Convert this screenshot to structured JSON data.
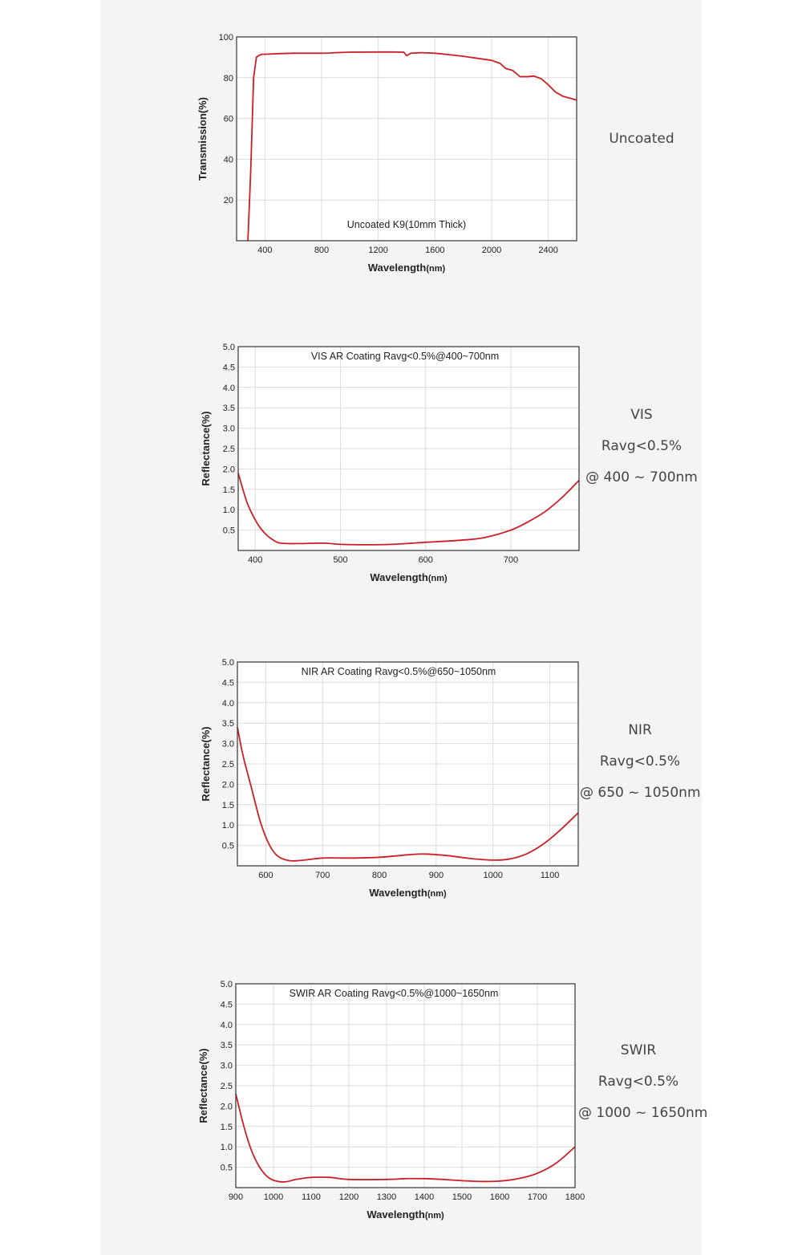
{
  "colors": {
    "curve": "#cc1f26",
    "grid": "#dcdcdc",
    "frame": "#333333",
    "background": "#f4f4f4"
  },
  "chart_data": [
    {
      "id": "uncoated",
      "type": "line",
      "title": "Uncoated K9(10mm Thick)",
      "xlabel": "Wavelength",
      "xunit": "(nm)",
      "ylabel": "Transmission(%)",
      "xlim": [
        200,
        2600
      ],
      "ylim": [
        0,
        100
      ],
      "xticks": [
        400,
        800,
        1200,
        1600,
        2000,
        2400
      ],
      "yticks": [
        20,
        40,
        60,
        80,
        100
      ],
      "ytick_labels": [
        "20",
        "40",
        "60",
        "80",
        "100"
      ],
      "grid": true,
      "side_labels": [
        "Uncoated"
      ],
      "series": [
        {
          "x": [
            280,
            300,
            320,
            340,
            360,
            380,
            400,
            500,
            600,
            700,
            800,
            850,
            900,
            1000,
            1200,
            1300,
            1380,
            1400,
            1430,
            1500,
            1600,
            1700,
            1800,
            1900,
            2000,
            2060,
            2100,
            2150,
            2200,
            2250,
            2300,
            2350,
            2400,
            2450,
            2500,
            2550,
            2600
          ],
          "y": [
            0,
            35,
            80,
            90,
            91,
            91.5,
            91.5,
            91.8,
            92,
            92,
            92,
            92.1,
            92.3,
            92.5,
            92.6,
            92.6,
            92.5,
            90.8,
            92,
            92.3,
            92,
            91.3,
            90.5,
            89.5,
            88.5,
            87,
            84.5,
            83.5,
            80.5,
            80.5,
            80.8,
            79.5,
            76.5,
            73,
            71,
            70,
            69
          ]
        }
      ]
    },
    {
      "id": "vis",
      "type": "line",
      "title": "VIS AR Coating Ravg<0.5%@400~700nm",
      "xlabel": "Wavelength",
      "xunit": "(nm)",
      "ylabel": "Reflectance(%)",
      "xlim": [
        380,
        780
      ],
      "ylim": [
        0,
        5
      ],
      "xticks": [
        400,
        500,
        600,
        700
      ],
      "yticks": [
        0.5,
        1,
        1.5,
        2,
        2.5,
        3,
        3.5,
        4,
        4.5,
        5
      ],
      "ytick_labels": [
        "0.5",
        "1.0",
        "1.5",
        "2.0",
        "2.5",
        "3.0",
        "3.5",
        "4.0",
        "4.5",
        "5.0"
      ],
      "grid": true,
      "side_labels": [
        "VIS",
        "Ravg<0.5%",
        "@ 400 ~ 700nm"
      ],
      "series": [
        {
          "x": [
            380,
            390,
            400,
            410,
            420,
            430,
            450,
            480,
            500,
            530,
            560,
            600,
            640,
            670,
            700,
            720,
            740,
            760,
            780
          ],
          "y": [
            1.9,
            1.2,
            0.75,
            0.45,
            0.27,
            0.18,
            0.17,
            0.18,
            0.15,
            0.14,
            0.15,
            0.2,
            0.25,
            0.32,
            0.5,
            0.7,
            0.95,
            1.3,
            1.72
          ]
        }
      ]
    },
    {
      "id": "nir",
      "type": "line",
      "title": "NIR AR Coating Ravg<0.5%@650~1050nm",
      "xlabel": "Wavelength",
      "xunit": "(nm)",
      "ylabel": "Reflectance(%)",
      "xlim": [
        550,
        1150
      ],
      "ylim": [
        0,
        5
      ],
      "xticks": [
        600,
        700,
        800,
        900,
        1000,
        1100
      ],
      "yticks": [
        0.5,
        1,
        1.5,
        2,
        2.5,
        3,
        3.5,
        4,
        4.5,
        5
      ],
      "ytick_labels": [
        "0.5",
        "1.0",
        "1.5",
        "2.0",
        "2.5",
        "3.0",
        "3.5",
        "4.0",
        "4.5",
        "5.0"
      ],
      "grid": true,
      "side_labels": [
        "NIR",
        "Ravg<0.5%",
        "@ 650 ~ 1050nm"
      ],
      "series": [
        {
          "x": [
            550,
            560,
            575,
            590,
            605,
            620,
            640,
            660,
            700,
            750,
            800,
            850,
            880,
            920,
            960,
            1000,
            1030,
            1060,
            1090,
            1120,
            1150
          ],
          "y": [
            3.4,
            2.7,
            1.9,
            1.1,
            0.55,
            0.25,
            0.13,
            0.13,
            0.19,
            0.19,
            0.21,
            0.27,
            0.29,
            0.25,
            0.18,
            0.14,
            0.17,
            0.3,
            0.55,
            0.9,
            1.3
          ]
        }
      ]
    },
    {
      "id": "swir",
      "type": "line",
      "title": "SWIR AR Coating Ravg<0.5%@1000~1650nm",
      "xlabel": "Wavelength",
      "xunit": "(nm)",
      "ylabel": "Reflectance(%)",
      "xlim": [
        900,
        1800
      ],
      "ylim": [
        0,
        5
      ],
      "xticks": [
        900,
        1000,
        1100,
        1200,
        1300,
        1400,
        1500,
        1600,
        1700,
        1800
      ],
      "yticks": [
        0.5,
        1,
        1.5,
        2,
        2.5,
        3,
        3.5,
        4,
        4.5,
        5
      ],
      "ytick_labels": [
        "0.5",
        "1.0",
        "1.5",
        "2.0",
        "2.5",
        "3.0",
        "3.5",
        "4.0",
        "4.5",
        "5.0"
      ],
      "grid": true,
      "side_labels": [
        "SWIR",
        "Ravg<0.5%",
        "@ 1000 ~ 1650nm"
      ],
      "series": [
        {
          "x": [
            900,
            920,
            940,
            960,
            980,
            1000,
            1030,
            1060,
            1100,
            1150,
            1200,
            1300,
            1350,
            1400,
            1450,
            1500,
            1550,
            1600,
            1650,
            1700,
            1750,
            1800
          ],
          "y": [
            2.3,
            1.55,
            0.95,
            0.55,
            0.3,
            0.18,
            0.14,
            0.2,
            0.25,
            0.25,
            0.2,
            0.2,
            0.22,
            0.22,
            0.2,
            0.17,
            0.15,
            0.16,
            0.22,
            0.35,
            0.6,
            1.0
          ]
        }
      ]
    }
  ]
}
